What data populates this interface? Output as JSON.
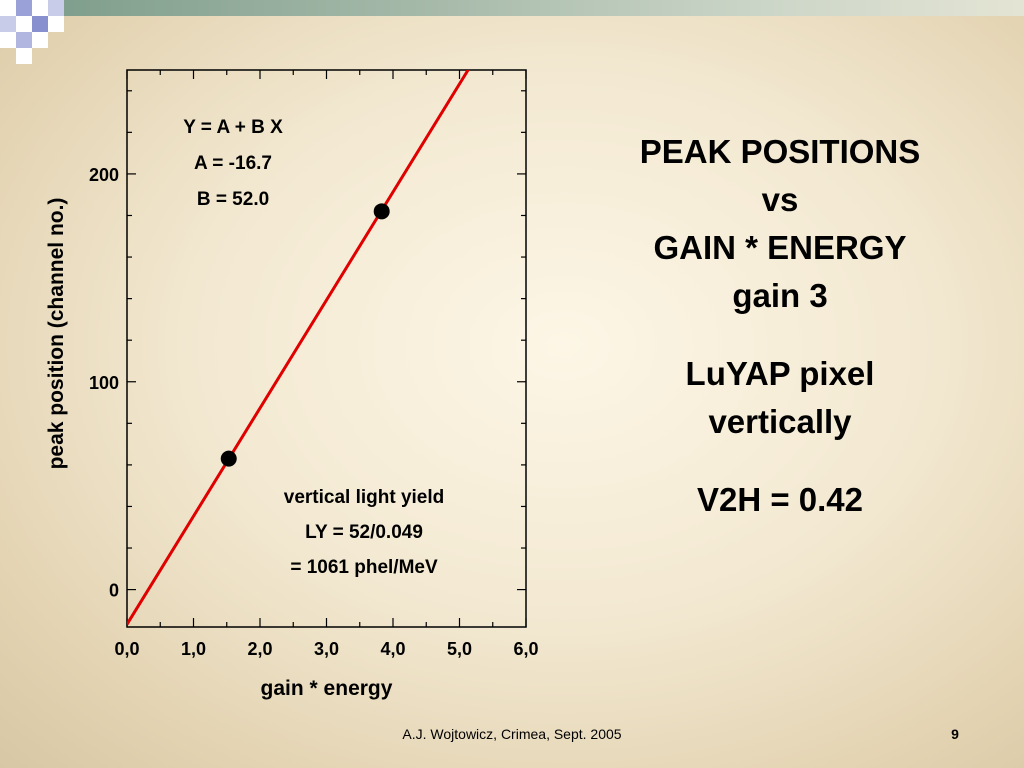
{
  "slide": {
    "title_lines": [
      "PEAK POSITIONS",
      "vs",
      "GAIN * ENERGY",
      "gain 3"
    ],
    "subtitle_lines": [
      "LuYAP pixel",
      "vertically"
    ],
    "ratio_line": "V2H = 0.42",
    "footer": "A.J. Wojtowicz, Crimea, Sept. 2005",
    "page_number": "9"
  },
  "colors": {
    "fit_line": "#e00000",
    "points": "#000000",
    "top_bar": "#7a9a88"
  },
  "chart_data": {
    "type": "scatter",
    "xlabel": "gain * energy",
    "ylabel": "peak position (channel no.)",
    "xlim": [
      0,
      6
    ],
    "ylim": [
      -18,
      250
    ],
    "x_ticks": [
      {
        "value": 0,
        "label": "0,0"
      },
      {
        "value": 1,
        "label": "1,0"
      },
      {
        "value": 2,
        "label": "2,0"
      },
      {
        "value": 3,
        "label": "3,0"
      },
      {
        "value": 4,
        "label": "4,0"
      },
      {
        "value": 5,
        "label": "5,0"
      },
      {
        "value": 6,
        "label": "6,0"
      }
    ],
    "y_ticks": [
      {
        "value": 0,
        "label": "0"
      },
      {
        "value": 100,
        "label": "100"
      },
      {
        "value": 200,
        "label": "200"
      }
    ],
    "points": [
      {
        "x": 1.53,
        "y": 63
      },
      {
        "x": 3.83,
        "y": 182
      }
    ],
    "fit": {
      "intercept": -16.7,
      "slope": 52.0
    },
    "annotations": {
      "fit_text": [
        "Y = A + B X",
        "A = -16.7",
        "B = 52.0"
      ],
      "yield_text": [
        "vertical light yield",
        "LY = 52/0.049",
        "= 1061 phel/MeV"
      ]
    },
    "grid": false
  }
}
